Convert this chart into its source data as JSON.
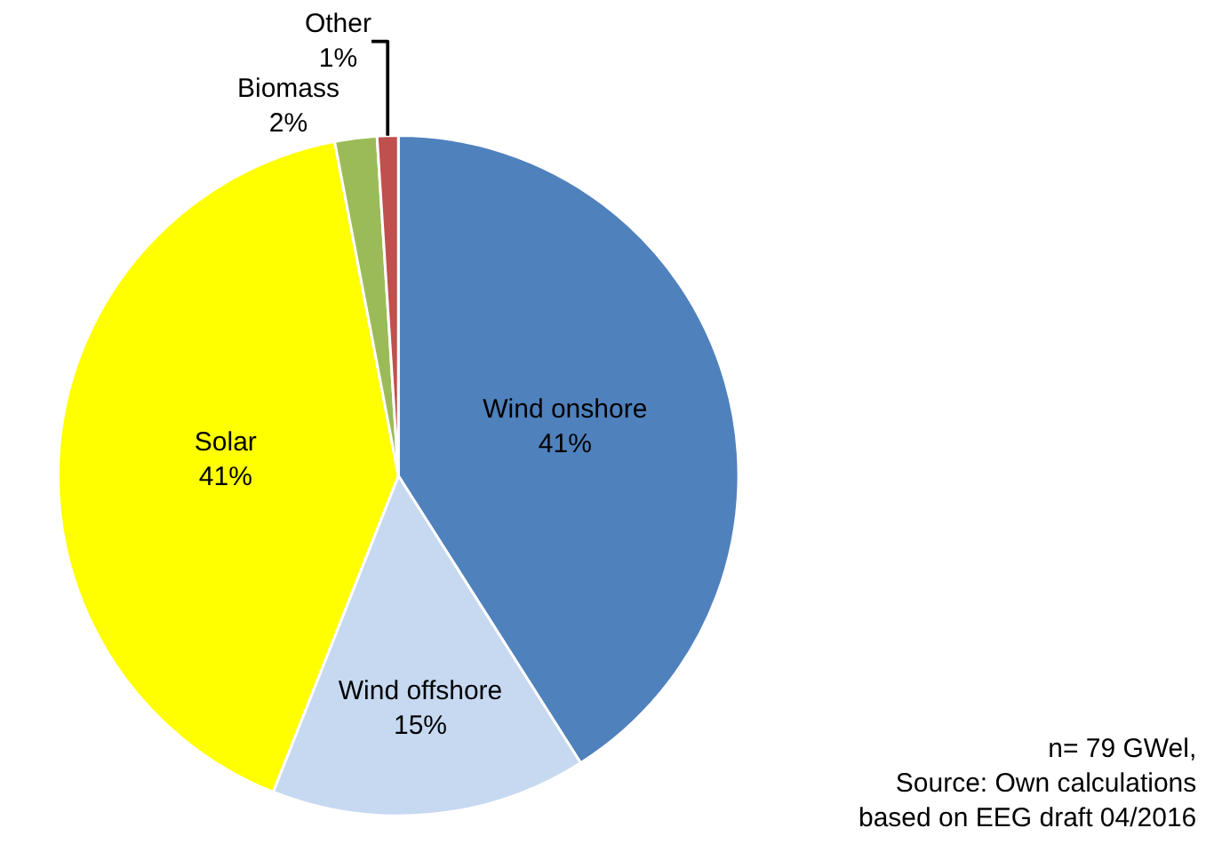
{
  "chart_data": {
    "type": "pie",
    "categories": [
      "Wind onshore",
      "Wind offshore",
      "Solar",
      "Biomass",
      "Other"
    ],
    "values": [
      41,
      15,
      41,
      2,
      1
    ],
    "value_labels": [
      "41%",
      "15%",
      "41%",
      "2%",
      "1%"
    ],
    "colors": [
      "#4f81bd",
      "#c6d9f1",
      "#ffff00",
      "#9bbb59",
      "#c0504d"
    ],
    "legend": false,
    "annotations": [
      "n= 79 GWel,\nSource: Own calculations\nbased on EEG draft 04/2016"
    ]
  }
}
